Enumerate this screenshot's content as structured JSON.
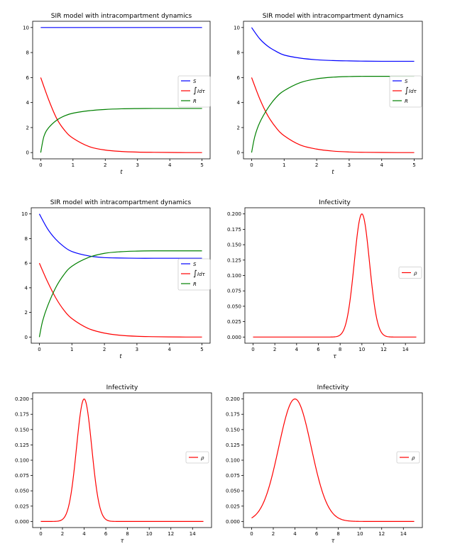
{
  "chart_data": [
    {
      "type": "line",
      "title": "SIR model with intracompartment dynamics",
      "xlabel": "t",
      "ylabel": "",
      "xlim": [
        -0.25,
        5.25
      ],
      "ylim": [
        -0.5,
        10.5
      ],
      "xticks": [
        0,
        1,
        2,
        3,
        4,
        5
      ],
      "yticks": [
        0,
        2,
        4,
        6,
        8,
        10
      ],
      "legend_position": "center-right",
      "series": [
        {
          "name": "S",
          "color": "#0000ff",
          "x": [
            0,
            0.25,
            0.5,
            0.75,
            1,
            1.5,
            2,
            2.5,
            3,
            3.5,
            4,
            4.5,
            5
          ],
          "y": [
            10,
            10,
            10,
            10,
            10,
            10,
            10,
            10,
            10,
            10,
            10,
            10,
            10
          ]
        },
        {
          "name": "∫Idτ",
          "color": "#ff0000",
          "x": [
            0,
            0.25,
            0.5,
            0.75,
            1,
            1.5,
            2,
            2.5,
            3,
            3.5,
            4,
            4.5,
            5
          ],
          "y": [
            6.0,
            4.2,
            2.7,
            1.75,
            1.15,
            0.48,
            0.2,
            0.09,
            0.04,
            0.02,
            0.01,
            0.0,
            0.0
          ]
        },
        {
          "name": "R",
          "color": "#008000",
          "x": [
            0,
            0.1,
            0.25,
            0.5,
            0.75,
            1,
            1.5,
            2,
            2.5,
            3,
            3.5,
            4,
            4.5,
            5
          ],
          "y": [
            0.0,
            1.3,
            2.0,
            2.6,
            2.95,
            3.15,
            3.35,
            3.45,
            3.5,
            3.52,
            3.53,
            3.53,
            3.53,
            3.53
          ]
        }
      ]
    },
    {
      "type": "line",
      "title": "SIR model with intracompartment dynamics",
      "xlabel": "t",
      "ylabel": "",
      "xlim": [
        -0.25,
        5.25
      ],
      "ylim": [
        -0.5,
        10.5
      ],
      "xticks": [
        0,
        1,
        2,
        3,
        4,
        5
      ],
      "yticks": [
        0,
        2,
        4,
        6,
        8,
        10
      ],
      "legend_position": "center-right",
      "series": [
        {
          "name": "S",
          "color": "#0000ff",
          "x": [
            0,
            0.25,
            0.5,
            0.75,
            1,
            1.5,
            2,
            2.5,
            3,
            3.5,
            4,
            4.5,
            5
          ],
          "y": [
            10.0,
            9.1,
            8.5,
            8.1,
            7.8,
            7.55,
            7.42,
            7.36,
            7.33,
            7.31,
            7.3,
            7.3,
            7.3
          ]
        },
        {
          "name": "∫Idτ",
          "color": "#ff0000",
          "x": [
            0,
            0.25,
            0.5,
            0.75,
            1,
            1.5,
            2,
            2.5,
            3,
            3.5,
            4,
            4.5,
            5
          ],
          "y": [
            6.0,
            4.3,
            2.95,
            2.0,
            1.35,
            0.6,
            0.28,
            0.12,
            0.05,
            0.02,
            0.01,
            0.0,
            0.0
          ]
        },
        {
          "name": "R",
          "color": "#008000",
          "x": [
            0,
            0.1,
            0.25,
            0.5,
            0.75,
            1,
            1.5,
            2,
            2.5,
            3,
            3.5,
            4,
            4.5,
            5
          ],
          "y": [
            0.0,
            1.3,
            2.4,
            3.55,
            4.4,
            4.95,
            5.6,
            5.9,
            6.03,
            6.08,
            6.1,
            6.1,
            6.1,
            6.1
          ]
        }
      ]
    },
    {
      "type": "line",
      "title": "SIR model with intracompartment dynamics",
      "xlabel": "t",
      "ylabel": "",
      "xlim": [
        -0.25,
        5.25
      ],
      "ylim": [
        -0.5,
        10.5
      ],
      "xticks": [
        0,
        1,
        2,
        3,
        4,
        5
      ],
      "yticks": [
        0,
        2,
        4,
        6,
        8,
        10
      ],
      "legend_position": "center-right",
      "series": [
        {
          "name": "S",
          "color": "#0000ff",
          "x": [
            0,
            0.25,
            0.5,
            0.75,
            1,
            1.5,
            2,
            2.5,
            3,
            3.5,
            4,
            4.5,
            5
          ],
          "y": [
            10.0,
            8.8,
            7.95,
            7.35,
            6.95,
            6.6,
            6.45,
            6.42,
            6.4,
            6.4,
            6.4,
            6.4,
            6.4
          ]
        },
        {
          "name": "∫Idτ",
          "color": "#ff0000",
          "x": [
            0,
            0.25,
            0.5,
            0.75,
            1,
            1.5,
            2,
            2.5,
            3,
            3.5,
            4,
            4.5,
            5
          ],
          "y": [
            6.0,
            4.5,
            3.2,
            2.2,
            1.5,
            0.7,
            0.32,
            0.14,
            0.06,
            0.03,
            0.01,
            0.0,
            0.0
          ]
        },
        {
          "name": "R",
          "color": "#008000",
          "x": [
            0,
            0.1,
            0.25,
            0.5,
            0.75,
            1,
            1.5,
            2,
            2.5,
            3,
            3.5,
            4,
            4.5,
            5
          ],
          "y": [
            0.0,
            1.3,
            2.5,
            4.0,
            5.05,
            5.75,
            6.45,
            6.8,
            6.93,
            6.98,
            7.0,
            7.0,
            7.0,
            7.0
          ]
        }
      ]
    },
    {
      "type": "line",
      "title": "Infectivity",
      "xlabel": "τ",
      "ylabel": "",
      "xlim": [
        -0.75,
        15.75
      ],
      "ylim": [
        -0.01,
        0.21
      ],
      "xticks": [
        0,
        2,
        4,
        6,
        8,
        10,
        12,
        14
      ],
      "yticks": [
        0.0,
        0.025,
        0.05,
        0.075,
        0.1,
        0.125,
        0.15,
        0.175,
        0.2
      ],
      "ytick_labels": [
        "0.000",
        "0.025",
        "0.050",
        "0.075",
        "0.100",
        "0.125",
        "0.150",
        "0.175",
        "0.200"
      ],
      "legend_position": "center-right",
      "series": [
        {
          "name": "ρ",
          "color": "#ff0000",
          "gaussian": {
            "peak": 0.2,
            "mean": 10,
            "sd": 0.7
          },
          "x_range": [
            0,
            15
          ]
        }
      ]
    },
    {
      "type": "line",
      "title": "Infectivity",
      "xlabel": "τ",
      "ylabel": "",
      "xlim": [
        -0.75,
        15.75
      ],
      "ylim": [
        -0.01,
        0.21
      ],
      "xticks": [
        0,
        2,
        4,
        6,
        8,
        10,
        12,
        14
      ],
      "yticks": [
        0.0,
        0.025,
        0.05,
        0.075,
        0.1,
        0.125,
        0.15,
        0.175,
        0.2
      ],
      "ytick_labels": [
        "0.000",
        "0.025",
        "0.050",
        "0.075",
        "0.100",
        "0.125",
        "0.150",
        "0.175",
        "0.200"
      ],
      "legend_position": "center-right",
      "series": [
        {
          "name": "ρ",
          "color": "#ff0000",
          "gaussian": {
            "peak": 0.2,
            "mean": 4,
            "sd": 0.7
          },
          "x_range": [
            0,
            15
          ]
        }
      ]
    },
    {
      "type": "line",
      "title": "Infectivity",
      "xlabel": "τ",
      "ylabel": "",
      "xlim": [
        -0.75,
        15.75
      ],
      "ylim": [
        -0.01,
        0.21
      ],
      "xticks": [
        0,
        2,
        4,
        6,
        8,
        10,
        12,
        14
      ],
      "yticks": [
        0.0,
        0.025,
        0.05,
        0.075,
        0.1,
        0.125,
        0.15,
        0.175,
        0.2
      ],
      "ytick_labels": [
        "0.000",
        "0.025",
        "0.050",
        "0.075",
        "0.100",
        "0.125",
        "0.150",
        "0.175",
        "0.200"
      ],
      "legend_position": "center-right",
      "series": [
        {
          "name": "ρ",
          "color": "#ff0000",
          "gaussian": {
            "peak": 0.2,
            "mean": 4,
            "sd": 1.5
          },
          "x_range": [
            0,
            15
          ]
        }
      ]
    }
  ]
}
